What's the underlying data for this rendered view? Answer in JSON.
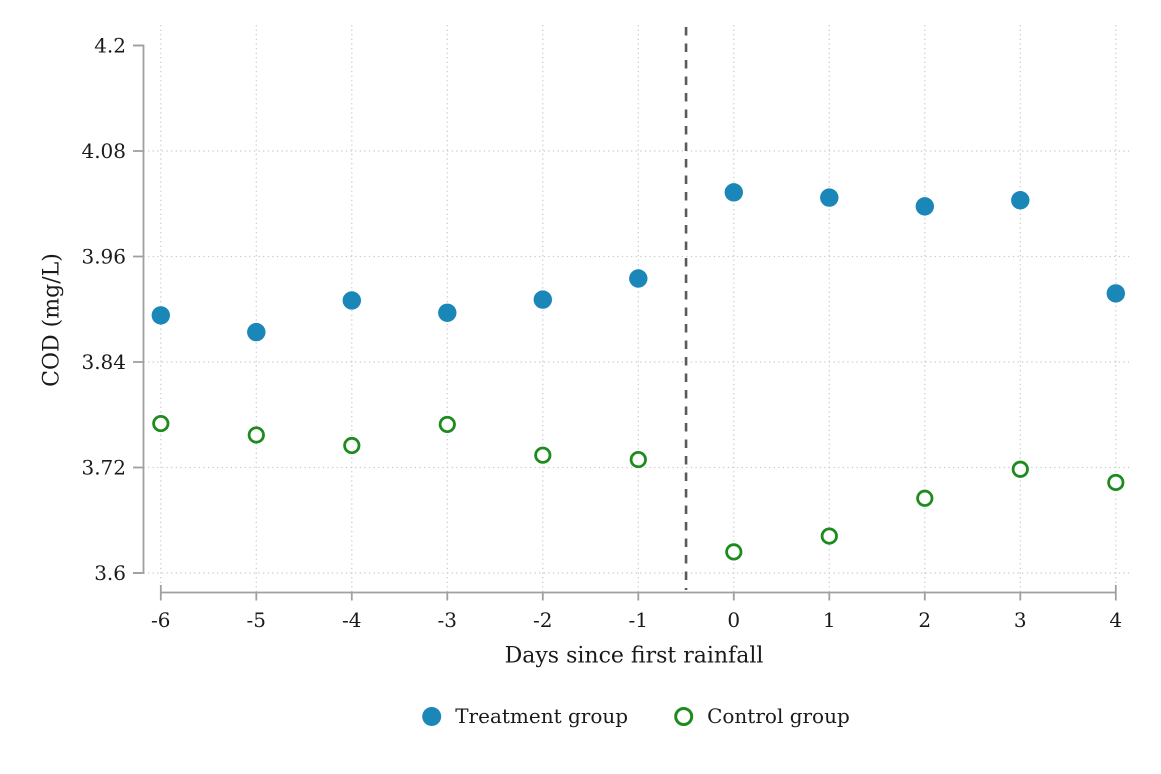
{
  "chart_data": {
    "type": "scatter",
    "title": "",
    "xlabel": "Days since first rainfall",
    "ylabel": "COD (mg/L)",
    "x": [
      -6,
      -5,
      -4,
      -3,
      -2,
      -1,
      0,
      1,
      2,
      3,
      4
    ],
    "series": [
      {
        "name": "Treatment group",
        "marker": "filled-circle",
        "color": "#1b86b8",
        "values": [
          3.893,
          3.874,
          3.91,
          3.896,
          3.911,
          3.935,
          4.033,
          4.027,
          4.017,
          4.024,
          3.918
        ]
      },
      {
        "name": "Control group",
        "marker": "open-circle",
        "color": "#1e8b1e",
        "values": [
          3.77,
          3.757,
          3.745,
          3.769,
          3.734,
          3.729,
          3.624,
          3.642,
          3.685,
          3.718,
          3.703
        ]
      }
    ],
    "xticks": [
      -6,
      -5,
      -4,
      -3,
      -2,
      -1,
      0,
      1,
      2,
      3,
      4
    ],
    "yticks": [
      3.6,
      3.72,
      3.84,
      3.96,
      4.08,
      4.2
    ],
    "xlim": [
      -6.5,
      4.5
    ],
    "ylim": [
      3.6,
      4.2
    ],
    "grid": "dotted",
    "grid_color": "#c6c6c6",
    "axis_color": "#a0a0a0",
    "vline": {
      "x": -0.5,
      "style": "dashed",
      "color": "#5a5a5a"
    },
    "legend_position": "bottom-center"
  }
}
